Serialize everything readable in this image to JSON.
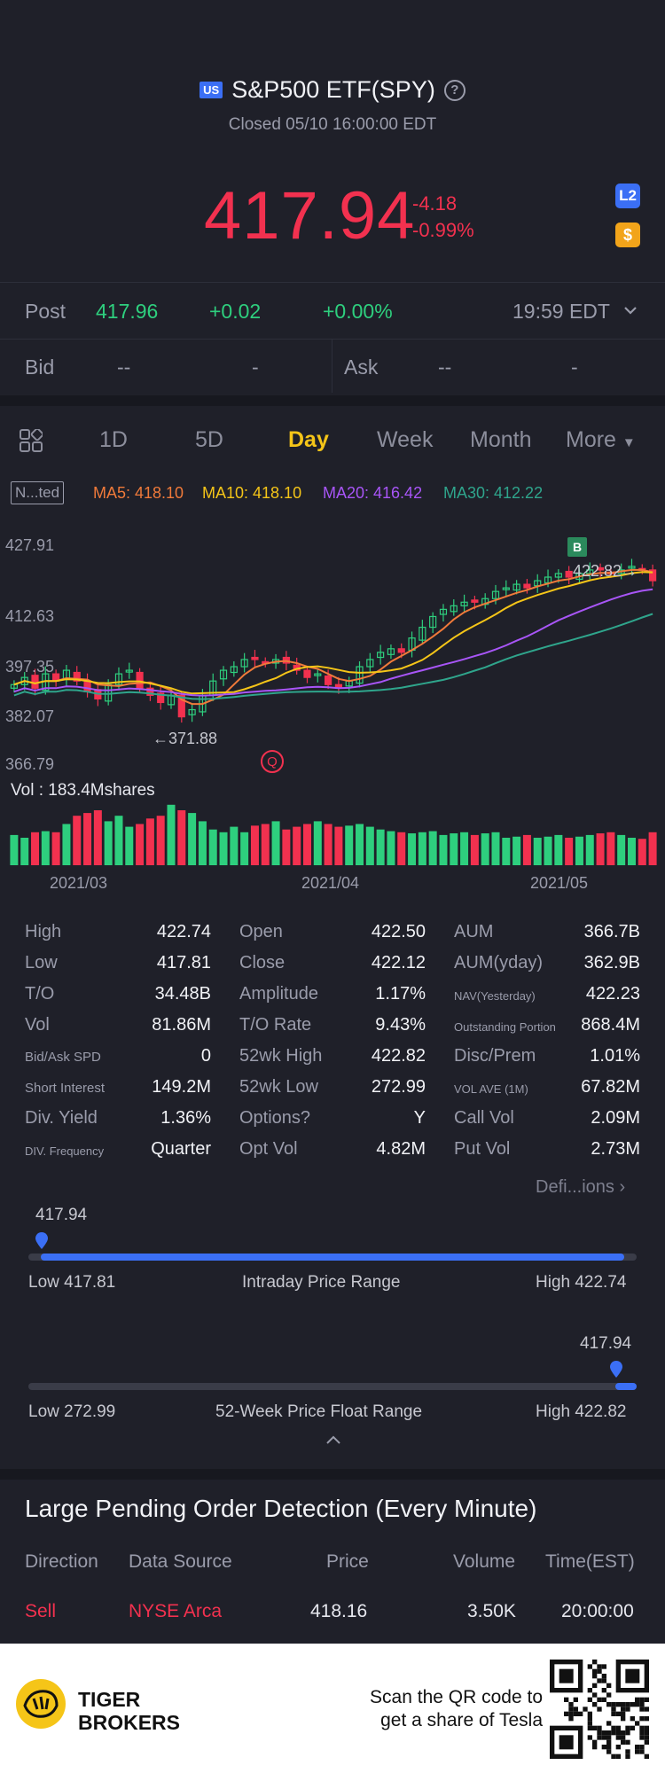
{
  "header": {
    "market_badge": "US",
    "title": "S&P500 ETF(SPY)",
    "status": "Closed 05/10 16:00:00 EDT",
    "price": "417.94",
    "change": "-4.18",
    "change_pct": "-0.99%",
    "l2_badge": "L2",
    "currency_badge": "$"
  },
  "post": {
    "label": "Post",
    "price": "417.96",
    "change": "+0.02",
    "change_pct": "+0.00%",
    "time": "19:59 EDT"
  },
  "bidask": {
    "bid_label": "Bid",
    "bid_price": "--",
    "bid_size": "-",
    "ask_label": "Ask",
    "ask_price": "--",
    "ask_size": "-"
  },
  "tabs": {
    "items": [
      "1D",
      "5D",
      "Day",
      "Week",
      "Month",
      "More"
    ],
    "active": "Day"
  },
  "ma": {
    "mode": "N...ted",
    "ma5": "MA5: 418.10",
    "ma10": "MA10: 418.10",
    "ma20": "MA20: 416.42",
    "ma30": "MA30: 412.22",
    "colors": {
      "ma5": "#f07a3a",
      "ma10": "#f5c518",
      "ma20": "#a855f7",
      "ma30": "#2fa58c"
    }
  },
  "chart": {
    "y_labels": [
      "427.91",
      "412.63",
      "397.35",
      "382.07",
      "366.79"
    ],
    "low_marker": "371.88",
    "high_marker": "422.82",
    "buy_marker": "B",
    "q_marker": "Q",
    "vol_label": "Vol  : 183.4Mshares",
    "x_labels": [
      "2021/03",
      "2021/04",
      "2021/05"
    ]
  },
  "chart_data": {
    "type": "candlestick",
    "y_range": [
      366.79,
      427.91
    ],
    "series": [
      {
        "name": "MA5",
        "color": "#f07a3a"
      },
      {
        "name": "MA10",
        "color": "#f5c518"
      },
      {
        "name": "MA20",
        "color": "#a855f7"
      },
      {
        "name": "MA30",
        "color": "#2fa58c"
      }
    ],
    "closes": [
      389,
      391,
      388,
      392,
      390,
      393,
      390,
      387,
      385,
      389,
      392,
      393,
      388,
      386,
      384,
      386,
      380,
      382,
      386,
      390,
      393,
      394,
      396,
      396,
      395,
      396,
      395,
      393,
      391,
      392,
      389,
      388,
      390,
      394,
      396,
      398,
      399,
      398,
      402,
      405,
      408,
      410,
      411,
      412,
      412,
      413,
      415,
      416,
      417,
      416,
      418,
      419,
      420,
      419,
      420,
      421,
      421,
      420,
      421,
      422,
      421,
      418
    ],
    "volumes": [
      0.55,
      0.5,
      0.6,
      0.62,
      0.6,
      0.75,
      0.9,
      0.95,
      1.0,
      0.8,
      0.9,
      0.7,
      0.75,
      0.85,
      0.9,
      1.1,
      1.0,
      0.95,
      0.8,
      0.65,
      0.6,
      0.7,
      0.6,
      0.72,
      0.75,
      0.8,
      0.65,
      0.7,
      0.75,
      0.8,
      0.75,
      0.7,
      0.72,
      0.75,
      0.7,
      0.65,
      0.62,
      0.6,
      0.58,
      0.6,
      0.62,
      0.55,
      0.58,
      0.6,
      0.55,
      0.58,
      0.6,
      0.5,
      0.52,
      0.55,
      0.5,
      0.52,
      0.55,
      0.5,
      0.52,
      0.55,
      0.58,
      0.6,
      0.55,
      0.5,
      0.48,
      0.6
    ]
  },
  "stats": {
    "col1": [
      {
        "label": "High",
        "value": "422.74",
        "size": "n"
      },
      {
        "label": "Low",
        "value": "417.81",
        "size": "n"
      },
      {
        "label": "T/O",
        "value": "34.48B",
        "size": "n"
      },
      {
        "label": "Vol",
        "value": "81.86M",
        "size": "n"
      },
      {
        "label": "Bid/Ask SPD",
        "value": "0",
        "size": "s"
      },
      {
        "label": "Short Interest",
        "value": "149.2M",
        "size": "s"
      },
      {
        "label": "Div. Yield",
        "value": "1.36%",
        "size": "n"
      },
      {
        "label": "DIV. Frequency",
        "value": "Quarter",
        "size": "t"
      }
    ],
    "col2": [
      {
        "label": "Open",
        "value": "422.50",
        "size": "n"
      },
      {
        "label": "Close",
        "value": "422.12",
        "size": "n"
      },
      {
        "label": "Amplitude",
        "value": "1.17%",
        "size": "n"
      },
      {
        "label": "T/O Rate",
        "value": "9.43%",
        "size": "n"
      },
      {
        "label": "52wk High",
        "value": "422.82",
        "size": "n"
      },
      {
        "label": "52wk Low",
        "value": "272.99",
        "size": "n"
      },
      {
        "label": "Options?",
        "value": "Y",
        "size": "n"
      },
      {
        "label": "Opt Vol",
        "value": "4.82M",
        "size": "n"
      }
    ],
    "col3": [
      {
        "label": "AUM",
        "value": "366.7B",
        "size": "n"
      },
      {
        "label": "AUM(yday)",
        "value": "362.9B",
        "size": "n"
      },
      {
        "label": "NAV(Yesterday)",
        "value": "422.23",
        "size": "t"
      },
      {
        "label": "Outstanding Portion",
        "value": "868.4M",
        "size": "t"
      },
      {
        "label": "Disc/Prem",
        "value": "1.01%",
        "size": "n"
      },
      {
        "label": "VOL AVE (1M)",
        "value": "67.82M",
        "size": "t"
      },
      {
        "label": "Call Vol",
        "value": "2.09M",
        "size": "n"
      },
      {
        "label": "Put Vol",
        "value": "2.73M",
        "size": "n"
      }
    ],
    "definitions": "Defi...ions"
  },
  "intraday": {
    "current": "417.94",
    "low": "Low 417.81",
    "title": "Intraday Price Range",
    "high": "High 422.74",
    "fraction": 0.03
  },
  "week52": {
    "current": "417.94",
    "low": "Low 272.99",
    "title": "52-Week Price Float Range",
    "high": "High 422.82",
    "fraction": 0.967
  },
  "orders": {
    "title": "Large Pending Order Detection (Every Minute)",
    "headers": [
      "Direction",
      "Data Source",
      "Price",
      "Volume",
      "Time(EST)"
    ],
    "row": {
      "direction": "Sell",
      "source": "NYSE Arca",
      "price": "418.16",
      "volume": "3.50K",
      "time": "20:00:00"
    }
  },
  "footer": {
    "brand_line1": "TIGER",
    "brand_line2": "BROKERS",
    "scan_line1": "Scan the QR code to",
    "scan_line2": "get a share of Tesla"
  }
}
